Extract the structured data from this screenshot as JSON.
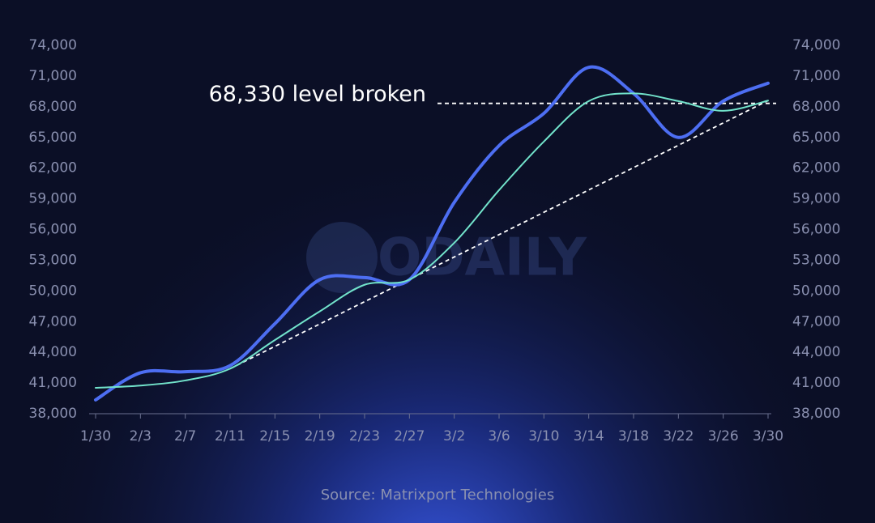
{
  "chart_data": {
    "type": "line",
    "categories": [
      "1/30",
      "2/3",
      "2/7",
      "2/11",
      "2/15",
      "2/19",
      "2/23",
      "2/27",
      "3/2",
      "3/6",
      "3/10",
      "3/14",
      "3/18",
      "3/22",
      "3/26",
      "3/30"
    ],
    "series": [
      {
        "color": "#4d6ef2",
        "values": [
          39350,
          42000,
          42100,
          42700,
          46800,
          51100,
          51300,
          51100,
          58650,
          64200,
          67350,
          71850,
          69300,
          65000,
          68550,
          70300
        ]
      },
      {
        "color": "#72e3cb",
        "values": [
          40530,
          40750,
          41250,
          42400,
          45200,
          48000,
          50600,
          51100,
          54700,
          59850,
          64600,
          68550,
          69300,
          68550,
          67600,
          68600
        ]
      }
    ],
    "trendline": {
      "color": "#ffffff",
      "values": [
        null,
        null,
        null,
        42400,
        44583,
        46767,
        48950,
        51133,
        53317,
        55500,
        57683,
        59867,
        62050,
        64233,
        66417,
        68600
      ]
    },
    "annotation": {
      "text": "68,330 level broken",
      "value": 68330
    },
    "ylim": [
      38000,
      74000
    ],
    "yticks": [
      {
        "value": 38000,
        "label": "38,000"
      },
      {
        "value": 41000,
        "label": "41,000"
      },
      {
        "value": 44000,
        "label": "44,000"
      },
      {
        "value": 47000,
        "label": "47,000"
      },
      {
        "value": 50000,
        "label": "50,000"
      },
      {
        "value": 53000,
        "label": "53,000"
      },
      {
        "value": 56000,
        "label": "56,000"
      },
      {
        "value": 59000,
        "label": "59,000"
      },
      {
        "value": 62000,
        "label": "62,000"
      },
      {
        "value": 65000,
        "label": "65,000"
      },
      {
        "value": 68000,
        "label": "68,000"
      },
      {
        "value": 71000,
        "label": "71,000"
      },
      {
        "value": 74000,
        "label": "74,000"
      }
    ],
    "watermark": "ODAILY",
    "source": "Source: Matrixport Technologies"
  }
}
